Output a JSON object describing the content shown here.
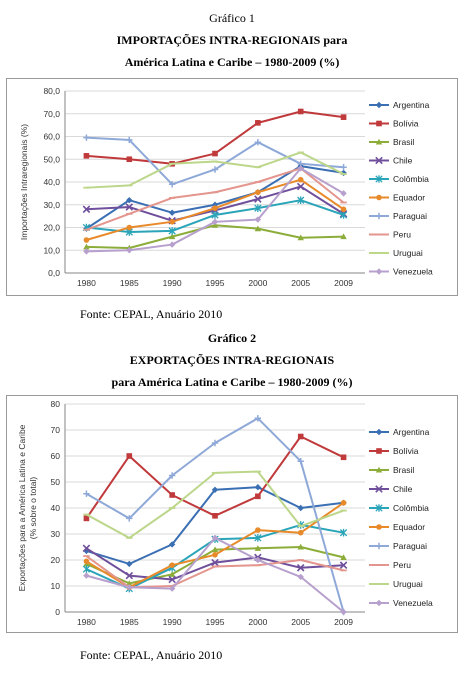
{
  "figure1": {
    "caption": "Gráfico 1",
    "title_line1": "IMPORTAÇÕES INTRA-REGIONAIS para",
    "title_line2": "América Latina e Caribe – 1980-2009 (%)",
    "source": "Fonte: CEPAL, Anuário 2010"
  },
  "figure2": {
    "caption": "Gráfico 2",
    "title_line1": "EXPORTAÇÕES INTRA-REGIONAIS",
    "title_line2": "para América Latina e Caribe – 1980-2009 (%)",
    "source": "Fonte: CEPAL, Anuário 2010"
  },
  "chart_data": [
    {
      "type": "line",
      "ylabel": "Importações Intraregionais (%)",
      "ylim": [
        0,
        80
      ],
      "yticks": [
        "0,0",
        "10,0",
        "20,0",
        "30,0",
        "40,0",
        "50,0",
        "60,0",
        "70,0",
        "80,0"
      ],
      "grid": true,
      "legend": "right",
      "x": [
        "1980",
        "1985",
        "1990",
        "1995",
        "2000",
        "2005",
        "2009"
      ],
      "series": [
        {
          "name": "Argentina",
          "color": "#3b6fb3",
          "marker": "diamond",
          "values": [
            19.5,
            32.0,
            26.5,
            30.0,
            35.5,
            47.0,
            44.0
          ]
        },
        {
          "name": "Bolívia",
          "color": "#c0393b",
          "marker": "square",
          "values": [
            51.5,
            50.0,
            48.0,
            52.5,
            66.0,
            71.0,
            68.5
          ]
        },
        {
          "name": "Brasil",
          "color": "#8cad3a",
          "marker": "triangle",
          "values": [
            11.5,
            11.0,
            16.0,
            21.0,
            19.5,
            15.5,
            16.0
          ]
        },
        {
          "name": "Chile",
          "color": "#6f4f9b",
          "marker": "x",
          "values": [
            28.0,
            29.0,
            23.0,
            27.5,
            32.5,
            38.0,
            26.0
          ]
        },
        {
          "name": "Colômbia",
          "color": "#2aa4b8",
          "marker": "star",
          "values": [
            20.0,
            18.0,
            18.5,
            25.5,
            28.5,
            32.0,
            25.5
          ]
        },
        {
          "name": "Equador",
          "color": "#e88a2a",
          "marker": "circle",
          "values": [
            14.5,
            20.0,
            22.5,
            28.5,
            35.5,
            41.0,
            28.0
          ]
        },
        {
          "name": "Paraguai",
          "color": "#8ea8d8",
          "marker": "plus",
          "values": [
            59.5,
            58.5,
            39.0,
            45.5,
            57.5,
            48.0,
            46.5
          ]
        },
        {
          "name": "Peru",
          "color": "#e3958e",
          "marker": "dash",
          "values": [
            19.0,
            26.0,
            33.0,
            35.5,
            40.0,
            46.0,
            31.0
          ]
        },
        {
          "name": "Uruguai",
          "color": "#bcd68a",
          "marker": "dash",
          "values": [
            37.5,
            38.5,
            48.0,
            49.0,
            46.5,
            53.0,
            43.5
          ]
        },
        {
          "name": "Venezuela",
          "color": "#b7a0cd",
          "marker": "diamond",
          "values": [
            9.5,
            10.0,
            12.5,
            22.5,
            23.5,
            46.0,
            35.0
          ]
        }
      ]
    },
    {
      "type": "line",
      "ylabel": "Exportações para a América Latina e Caribe",
      "ylabel2": "(% sobre o total)",
      "ylim": [
        0,
        80
      ],
      "yticks": [
        "0",
        "10",
        "20",
        "30",
        "40",
        "50",
        "60",
        "70",
        "80"
      ],
      "grid": true,
      "legend": "right",
      "x": [
        "1980",
        "1985",
        "1990",
        "1995",
        "2000",
        "2005",
        "2009"
      ],
      "series": [
        {
          "name": "Argentina",
          "color": "#3b6fb3",
          "marker": "diamond",
          "values": [
            23.5,
            18.5,
            26.0,
            47.0,
            48.0,
            40.0,
            42.0
          ]
        },
        {
          "name": "Bolívia",
          "color": "#c0393b",
          "marker": "square",
          "values": [
            36.0,
            60.0,
            45.0,
            37.0,
            44.5,
            67.5,
            59.5
          ]
        },
        {
          "name": "Brasil",
          "color": "#8cad3a",
          "marker": "triangle",
          "values": [
            18.5,
            11.0,
            14.5,
            24.0,
            24.5,
            25.0,
            21.0
          ]
        },
        {
          "name": "Chile",
          "color": "#6f4f9b",
          "marker": "x",
          "values": [
            24.5,
            14.0,
            12.5,
            19.0,
            21.0,
            17.0,
            18.0
          ]
        },
        {
          "name": "Colômbia",
          "color": "#2aa4b8",
          "marker": "star",
          "values": [
            16.5,
            9.0,
            17.0,
            28.0,
            28.5,
            33.5,
            30.5
          ]
        },
        {
          "name": "Equador",
          "color": "#e88a2a",
          "marker": "circle",
          "values": [
            19.5,
            9.5,
            18.0,
            22.0,
            31.5,
            30.5,
            42.0
          ]
        },
        {
          "name": "Paraguai",
          "color": "#8ea8d8",
          "marker": "plus",
          "values": [
            45.5,
            36.0,
            52.5,
            65.0,
            74.5,
            58.0,
            0.0
          ]
        },
        {
          "name": "Peru",
          "color": "#e3958e",
          "marker": "dash",
          "values": [
            21.5,
            9.5,
            10.0,
            17.5,
            18.0,
            20.0,
            16.0
          ]
        },
        {
          "name": "Uruguai",
          "color": "#bcd68a",
          "marker": "dash",
          "values": [
            37.5,
            28.5,
            40.0,
            53.5,
            54.0,
            33.0,
            39.0
          ]
        },
        {
          "name": "Venezuela",
          "color": "#b7a0cd",
          "marker": "diamond",
          "values": [
            14.0,
            9.5,
            9.0,
            28.5,
            20.0,
            13.5,
            0.0
          ]
        }
      ]
    }
  ]
}
